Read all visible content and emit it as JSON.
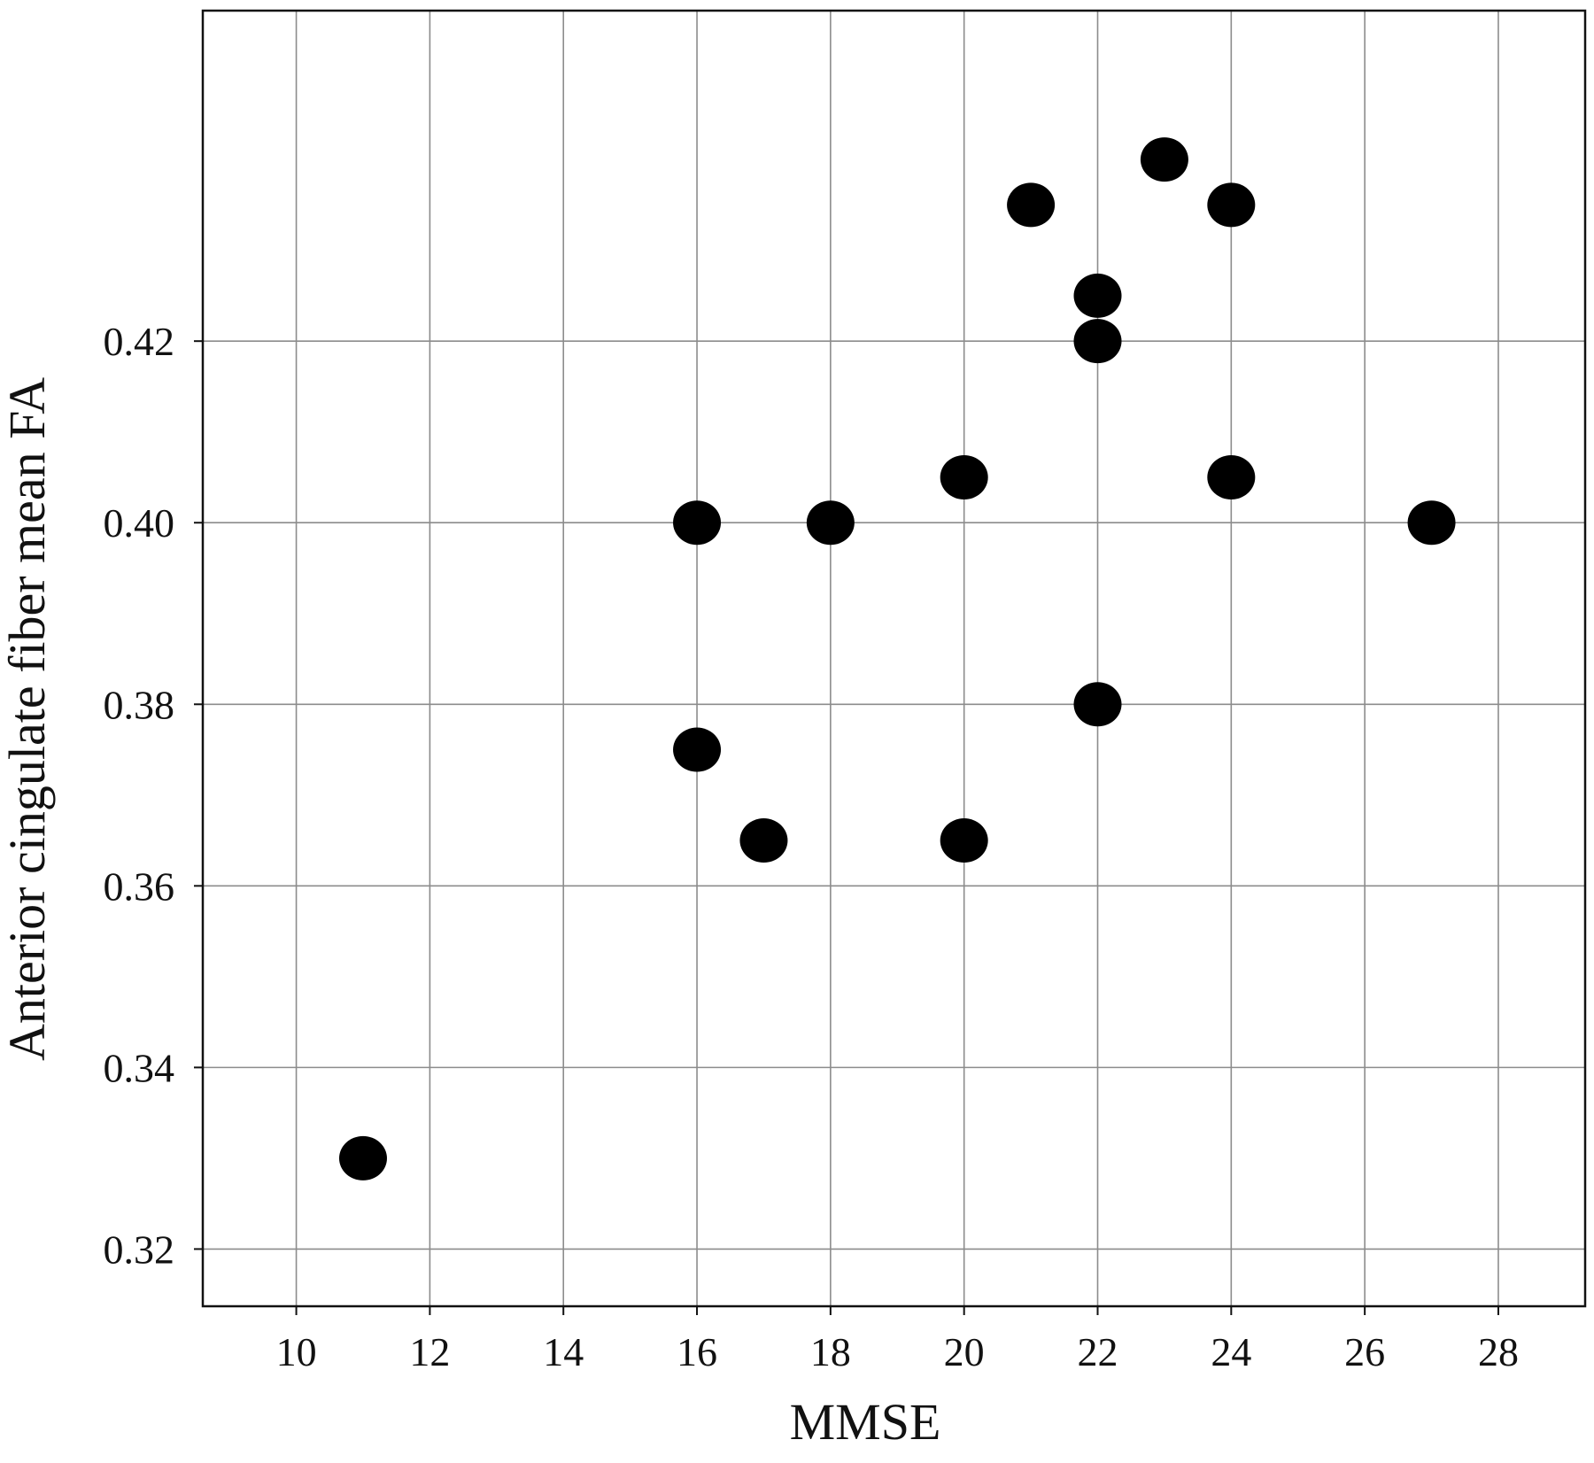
{
  "chart_data": {
    "type": "scatter",
    "title": "",
    "xlabel": "MMSE",
    "ylabel": "Anterior cingulate fiber mean FA",
    "xlim": [
      8.6,
      29.3
    ],
    "ylim": [
      0.3137,
      0.4564
    ],
    "x_ticks": [
      10,
      12,
      14,
      16,
      18,
      20,
      22,
      24,
      26,
      28
    ],
    "x_tick_labels": [
      "10",
      "12",
      "14",
      "16",
      "18",
      "20",
      "22",
      "24",
      "26",
      "28"
    ],
    "y_ticks": [
      0.32,
      0.34,
      0.36,
      0.38,
      0.4,
      0.42
    ],
    "y_tick_labels": [
      "0.32",
      "0.34",
      "0.36",
      "0.38",
      "0.40",
      "0.42"
    ],
    "grid": true,
    "marker_color": "#000000",
    "grid_color": "#8c8c8c",
    "series": [
      {
        "x": [
          11,
          16,
          16,
          17,
          18,
          20,
          20,
          21,
          22,
          22,
          22,
          23,
          24,
          24,
          27
        ],
        "y": [
          0.33,
          0.4,
          0.375,
          0.365,
          0.4,
          0.405,
          0.365,
          0.435,
          0.425,
          0.42,
          0.38,
          0.44,
          0.435,
          0.405,
          0.4
        ]
      }
    ]
  }
}
